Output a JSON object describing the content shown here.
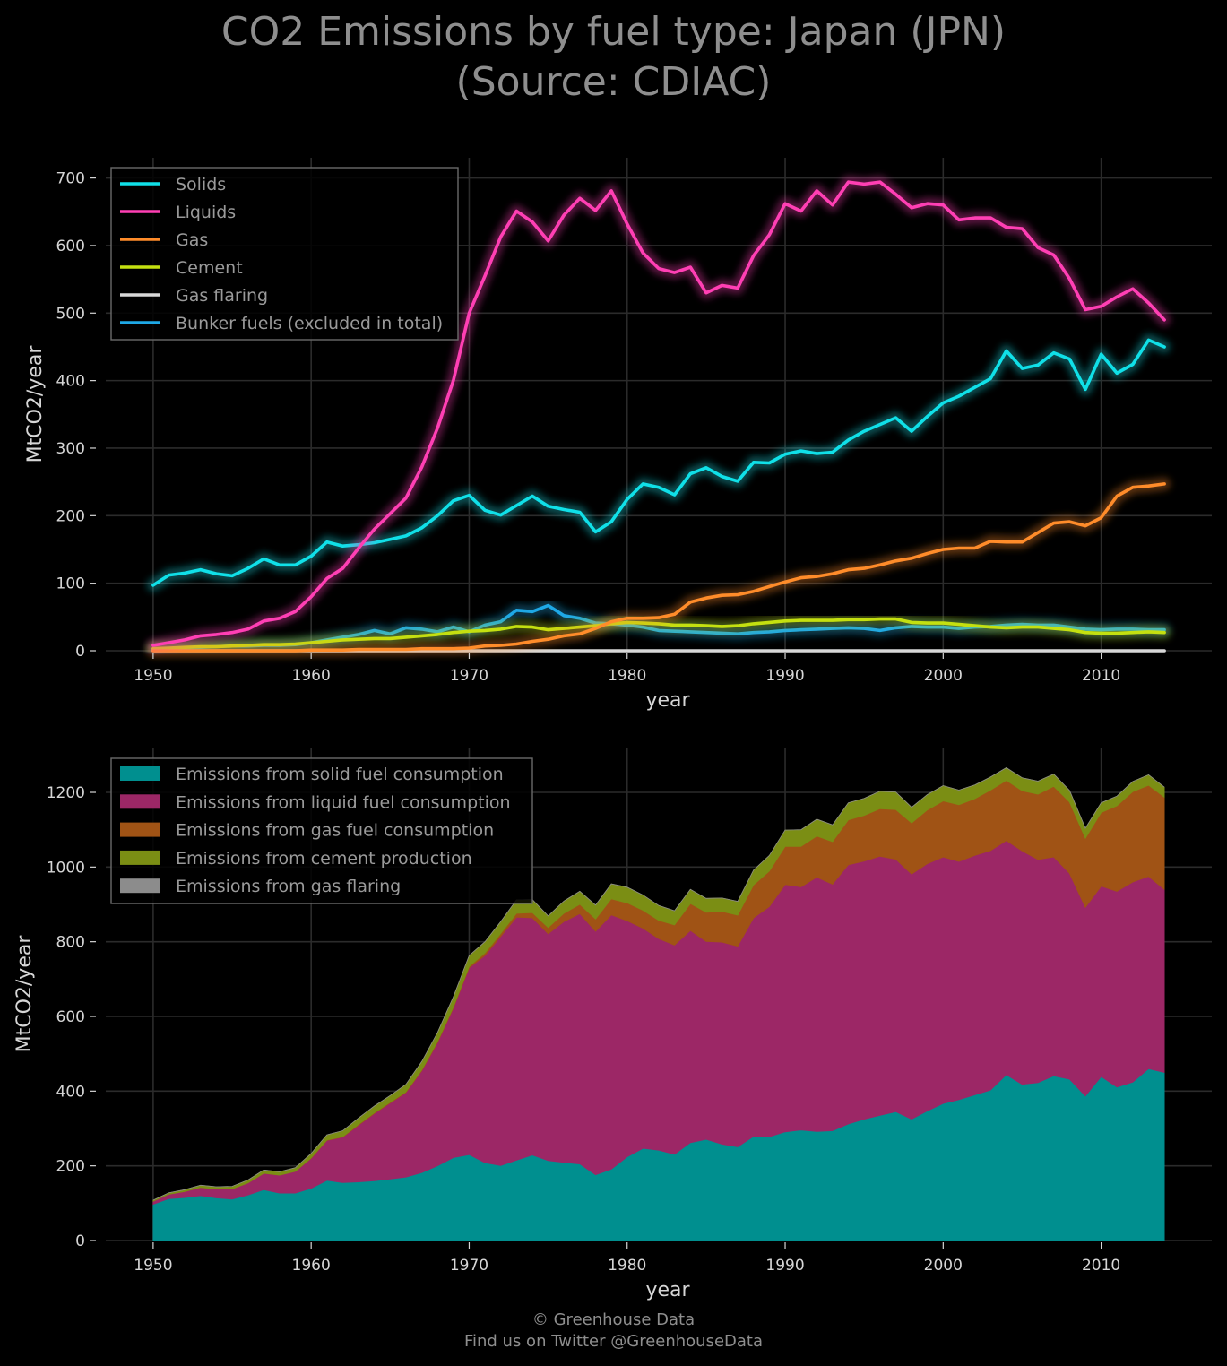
{
  "title": {
    "line1": "CO2 Emissions by fuel type: Japan (JPN)",
    "line2": "(Source: CDIAC)"
  },
  "credit": {
    "line1": "© Greenhouse Data",
    "line2": "Find us on Twitter @GreenhouseData"
  },
  "colors": {
    "solids": "#10e0e8",
    "liquids": "#ff3fb4",
    "gas": "#ff8c2a",
    "cement": "#c4e010",
    "flaring": "#d8d8d8",
    "bunker": "#1ea8e6",
    "area_solid": "#008f8f",
    "area_liquid": "#9c2766",
    "area_gas": "#a05315",
    "area_cement": "#7b8e14",
    "area_flaring": "#8c8c8c"
  },
  "chart_data": [
    {
      "type": "line",
      "xlabel": "year",
      "ylabel": "MtCO2/year",
      "xlim": [
        1947,
        2017
      ],
      "ylim": [
        0,
        730
      ],
      "xticks": [
        1950,
        1960,
        1970,
        1980,
        1990,
        2000,
        2010
      ],
      "yticks": [
        0,
        100,
        200,
        300,
        400,
        500,
        600,
        700
      ],
      "grid": true,
      "legend_position": "top-left",
      "x": [
        1950,
        1951,
        1952,
        1953,
        1954,
        1955,
        1956,
        1957,
        1958,
        1959,
        1960,
        1961,
        1962,
        1963,
        1964,
        1965,
        1966,
        1967,
        1968,
        1969,
        1970,
        1971,
        1972,
        1973,
        1974,
        1975,
        1976,
        1977,
        1978,
        1979,
        1980,
        1981,
        1982,
        1983,
        1984,
        1985,
        1986,
        1987,
        1988,
        1989,
        1990,
        1991,
        1992,
        1993,
        1994,
        1995,
        1996,
        1997,
        1998,
        1999,
        2000,
        2001,
        2002,
        2003,
        2004,
        2005,
        2006,
        2007,
        2008,
        2009,
        2010,
        2011,
        2012,
        2013,
        2014
      ],
      "series": [
        {
          "name": "Solids",
          "color_key": "solids",
          "values": [
            97,
            112,
            115,
            120,
            114,
            111,
            122,
            136,
            127,
            127,
            140,
            161,
            155,
            157,
            160,
            165,
            170,
            182,
            200,
            222,
            230,
            208,
            201,
            215,
            229,
            214,
            209,
            205,
            176,
            191,
            224,
            247,
            242,
            231,
            262,
            271,
            258,
            251,
            279,
            278,
            291,
            296,
            292,
            294,
            312,
            325,
            335,
            345,
            325,
            347,
            367,
            377,
            390,
            403,
            444,
            418,
            423,
            441,
            432,
            387,
            439,
            411,
            424,
            460,
            450
          ]
        },
        {
          "name": "Liquids",
          "color_key": "liquids",
          "values": [
            8,
            12,
            16,
            22,
            24,
            27,
            32,
            44,
            48,
            58,
            80,
            107,
            122,
            152,
            180,
            203,
            226,
            272,
            330,
            400,
            500,
            555,
            613,
            651,
            635,
            607,
            645,
            670,
            652,
            681,
            632,
            589,
            566,
            560,
            568,
            530,
            541,
            537,
            585,
            616,
            662,
            651,
            681,
            660,
            694,
            691,
            694,
            676,
            656,
            662,
            660,
            638,
            641,
            641,
            627,
            625,
            597,
            586,
            551,
            505,
            510,
            524,
            536,
            515,
            490
          ]
        },
        {
          "name": "Gas",
          "color_key": "gas",
          "values": [
            0,
            0,
            0,
            0,
            0,
            0,
            0,
            0,
            0,
            0,
            1,
            1,
            1,
            2,
            2,
            2,
            2,
            3,
            3,
            3,
            4,
            7,
            8,
            10,
            14,
            17,
            22,
            25,
            33,
            43,
            48,
            48,
            49,
            54,
            72,
            78,
            82,
            83,
            88,
            95,
            102,
            108,
            110,
            114,
            120,
            122,
            127,
            133,
            137,
            144,
            150,
            152,
            152,
            162,
            161,
            161,
            175,
            189,
            191,
            185,
            197,
            229,
            242,
            244,
            247
          ]
        },
        {
          "name": "Cement",
          "color_key": "cement",
          "values": [
            3,
            4,
            5,
            6,
            6,
            7,
            8,
            9,
            9,
            10,
            12,
            14,
            16,
            17,
            18,
            18,
            20,
            22,
            24,
            27,
            29,
            30,
            32,
            36,
            35,
            31,
            33,
            35,
            37,
            40,
            42,
            41,
            40,
            38,
            38,
            37,
            36,
            37,
            40,
            42,
            44,
            45,
            45,
            45,
            46,
            46,
            47,
            47,
            42,
            41,
            41,
            39,
            37,
            35,
            34,
            35,
            35,
            33,
            31,
            27,
            26,
            26,
            27,
            28,
            27
          ]
        },
        {
          "name": "Gas flaring",
          "color_key": "flaring",
          "values": [
            0,
            0,
            0,
            0,
            0,
            0,
            0,
            0,
            0,
            0,
            0,
            0,
            0,
            0,
            0,
            0,
            0,
            0,
            0,
            0,
            0,
            0,
            0,
            0,
            0,
            0,
            0,
            0,
            0,
            0,
            0,
            0,
            0,
            0,
            0,
            0,
            0,
            0,
            0,
            0,
            0,
            0,
            0,
            0,
            0,
            0,
            0,
            0,
            0,
            0,
            0,
            0,
            0,
            0,
            0,
            0,
            0,
            0,
            0,
            0,
            0,
            0,
            0,
            0,
            0
          ]
        },
        {
          "name": "Bunker fuels (excluded in total)",
          "color_key": "bunker",
          "values": [
            2,
            3,
            4,
            5,
            6,
            7,
            7,
            8,
            8,
            9,
            12,
            16,
            20,
            24,
            30,
            25,
            34,
            32,
            28,
            35,
            28,
            38,
            43,
            60,
            58,
            67,
            52,
            48,
            41,
            40,
            38,
            35,
            30,
            29,
            28,
            27,
            26,
            25,
            27,
            28,
            30,
            31,
            32,
            33,
            34,
            33,
            30,
            34,
            36,
            35,
            35,
            33,
            35,
            36,
            38,
            39,
            38,
            38,
            35,
            32,
            31,
            32,
            32,
            31,
            31
          ]
        }
      ]
    },
    {
      "type": "area",
      "stacked": true,
      "xlabel": "year",
      "ylabel": "MtCO2/year",
      "xlim": [
        1947,
        2017
      ],
      "ylim": [
        0,
        1320
      ],
      "xticks": [
        1950,
        1960,
        1970,
        1980,
        1990,
        2000,
        2010
      ],
      "yticks": [
        0,
        200,
        400,
        600,
        800,
        1000,
        1200
      ],
      "grid": true,
      "legend_position": "top-left",
      "series": [
        {
          "name": "Emissions from solid fuel consumption",
          "color_key": "area_solid",
          "from_series": 0
        },
        {
          "name": "Emissions from liquid fuel consumption",
          "color_key": "area_liquid",
          "from_series": 1
        },
        {
          "name": "Emissions from gas fuel consumption",
          "color_key": "area_gas",
          "from_series": 2
        },
        {
          "name": "Emissions from cement production",
          "color_key": "area_cement",
          "from_series": 3
        },
        {
          "name": "Emissions from gas flaring",
          "color_key": "area_flaring",
          "from_series": 4
        }
      ]
    }
  ]
}
